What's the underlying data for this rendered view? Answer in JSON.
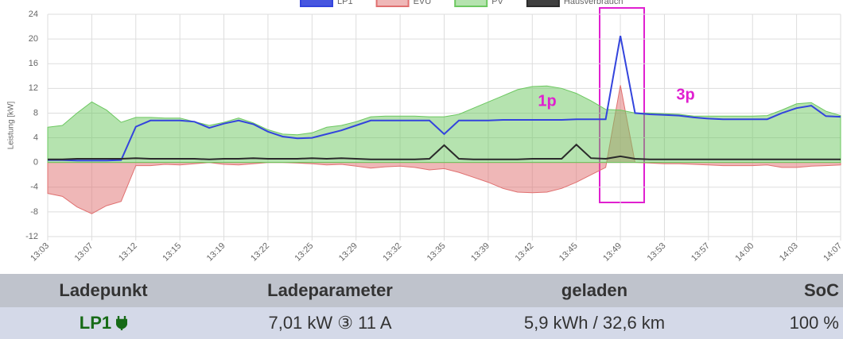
{
  "chart_data": {
    "type": "line",
    "y_label": "Leistung [kW]",
    "categories": [
      "13:03",
      null,
      null,
      "13:07",
      null,
      null,
      "13:12",
      null,
      null,
      "13:15",
      null,
      null,
      "13:19",
      null,
      null,
      "13:22",
      null,
      null,
      "13:25",
      null,
      null,
      "13:29",
      null,
      null,
      "13:32",
      null,
      null,
      "13:35",
      null,
      null,
      "13:39",
      null,
      null,
      "13:42",
      null,
      null,
      "13:45",
      null,
      null,
      "13:49",
      null,
      null,
      "13:53",
      null,
      null,
      "13:57",
      null,
      null,
      "14:00",
      null,
      null,
      "14:03",
      null,
      null,
      "14:07"
    ],
    "series": [
      {
        "name": "LP1",
        "color": "#3344dd",
        "fill": false,
        "values": [
          0.4,
          0.4,
          0.3,
          0.3,
          0.3,
          0.4,
          5.8,
          6.8,
          6.8,
          6.8,
          6.6,
          5.6,
          6.3,
          6.8,
          6.2,
          5.0,
          4.2,
          3.9,
          4.0,
          4.6,
          5.2,
          6.0,
          6.8,
          6.8,
          6.8,
          6.8,
          6.8,
          4.6,
          6.8,
          6.8,
          6.8,
          6.9,
          6.9,
          6.9,
          6.9,
          6.9,
          7.0,
          7.0,
          7.0,
          20.5,
          8.0,
          7.8,
          7.7,
          7.6,
          7.3,
          7.1,
          7.0,
          7.0,
          7.0,
          7.0,
          8.0,
          8.8,
          9.2,
          7.5,
          7.4
        ]
      },
      {
        "name": "EVU",
        "color": "#e07070",
        "fill": true,
        "values": [
          -5.0,
          -5.5,
          -7.2,
          -8.3,
          -7.0,
          -6.3,
          -0.5,
          -0.5,
          -0.3,
          -0.4,
          -0.2,
          0.0,
          -0.3,
          -0.4,
          -0.2,
          0.0,
          0.0,
          -0.1,
          -0.2,
          -0.4,
          -0.3,
          -0.6,
          -0.9,
          -0.7,
          -0.6,
          -0.8,
          -1.2,
          -1.0,
          -1.6,
          -2.4,
          -3.2,
          -4.2,
          -4.8,
          -4.9,
          -4.8,
          -4.2,
          -3.2,
          -2.0,
          -0.8,
          12.5,
          0.0,
          -0.1,
          -0.2,
          -0.2,
          -0.3,
          -0.4,
          -0.5,
          -0.5,
          -0.5,
          -0.4,
          -0.8,
          -0.8,
          -0.6,
          -0.5,
          -0.4
        ]
      },
      {
        "name": "PV",
        "color": "#6cc860",
        "fill": true,
        "values": [
          5.7,
          6.0,
          8.0,
          9.8,
          8.5,
          6.5,
          7.3,
          7.3,
          7.2,
          7.2,
          6.6,
          6.0,
          6.5,
          7.2,
          6.4,
          5.3,
          4.6,
          4.5,
          4.8,
          5.7,
          6.0,
          6.6,
          7.4,
          7.5,
          7.5,
          7.5,
          7.4,
          7.4,
          7.8,
          8.8,
          9.8,
          10.8,
          11.8,
          12.3,
          12.4,
          12.0,
          11.2,
          10.0,
          8.6,
          8.5,
          8.0,
          8.0,
          7.9,
          7.8,
          7.5,
          7.5,
          7.5,
          7.5,
          7.5,
          7.6,
          8.5,
          9.5,
          9.7,
          8.3,
          7.6
        ]
      },
      {
        "name": "Hausverbrauch",
        "color": "#2a2a2a",
        "fill": false,
        "values": [
          0.5,
          0.5,
          0.6,
          0.6,
          0.6,
          0.6,
          0.7,
          0.6,
          0.6,
          0.6,
          0.6,
          0.5,
          0.6,
          0.6,
          0.7,
          0.6,
          0.6,
          0.6,
          0.7,
          0.6,
          0.7,
          0.6,
          0.5,
          0.5,
          0.5,
          0.5,
          0.6,
          2.8,
          0.6,
          0.5,
          0.5,
          0.5,
          0.5,
          0.6,
          0.6,
          0.6,
          2.9,
          0.7,
          0.6,
          1.0,
          0.6,
          0.5,
          0.5,
          0.5,
          0.5,
          0.5,
          0.5,
          0.5,
          0.5,
          0.5,
          0.5,
          0.5,
          0.5,
          0.5,
          0.5
        ]
      }
    ],
    "ylim": [
      -12,
      24
    ],
    "yticks": [
      -12,
      -8,
      -4,
      0,
      4,
      8,
      12,
      16,
      20,
      24
    ],
    "grid": true,
    "legend": "top",
    "annotations": [
      "1p",
      "3p"
    ]
  },
  "table": {
    "header": [
      "Ladepunkt",
      "Ladeparameter",
      "geladen",
      "SoC"
    ],
    "rows": [
      [
        "LP1",
        "7,01 kW ③ 11 A",
        "5,9 kWh / 32,6 km",
        "100 %"
      ]
    ]
  }
}
